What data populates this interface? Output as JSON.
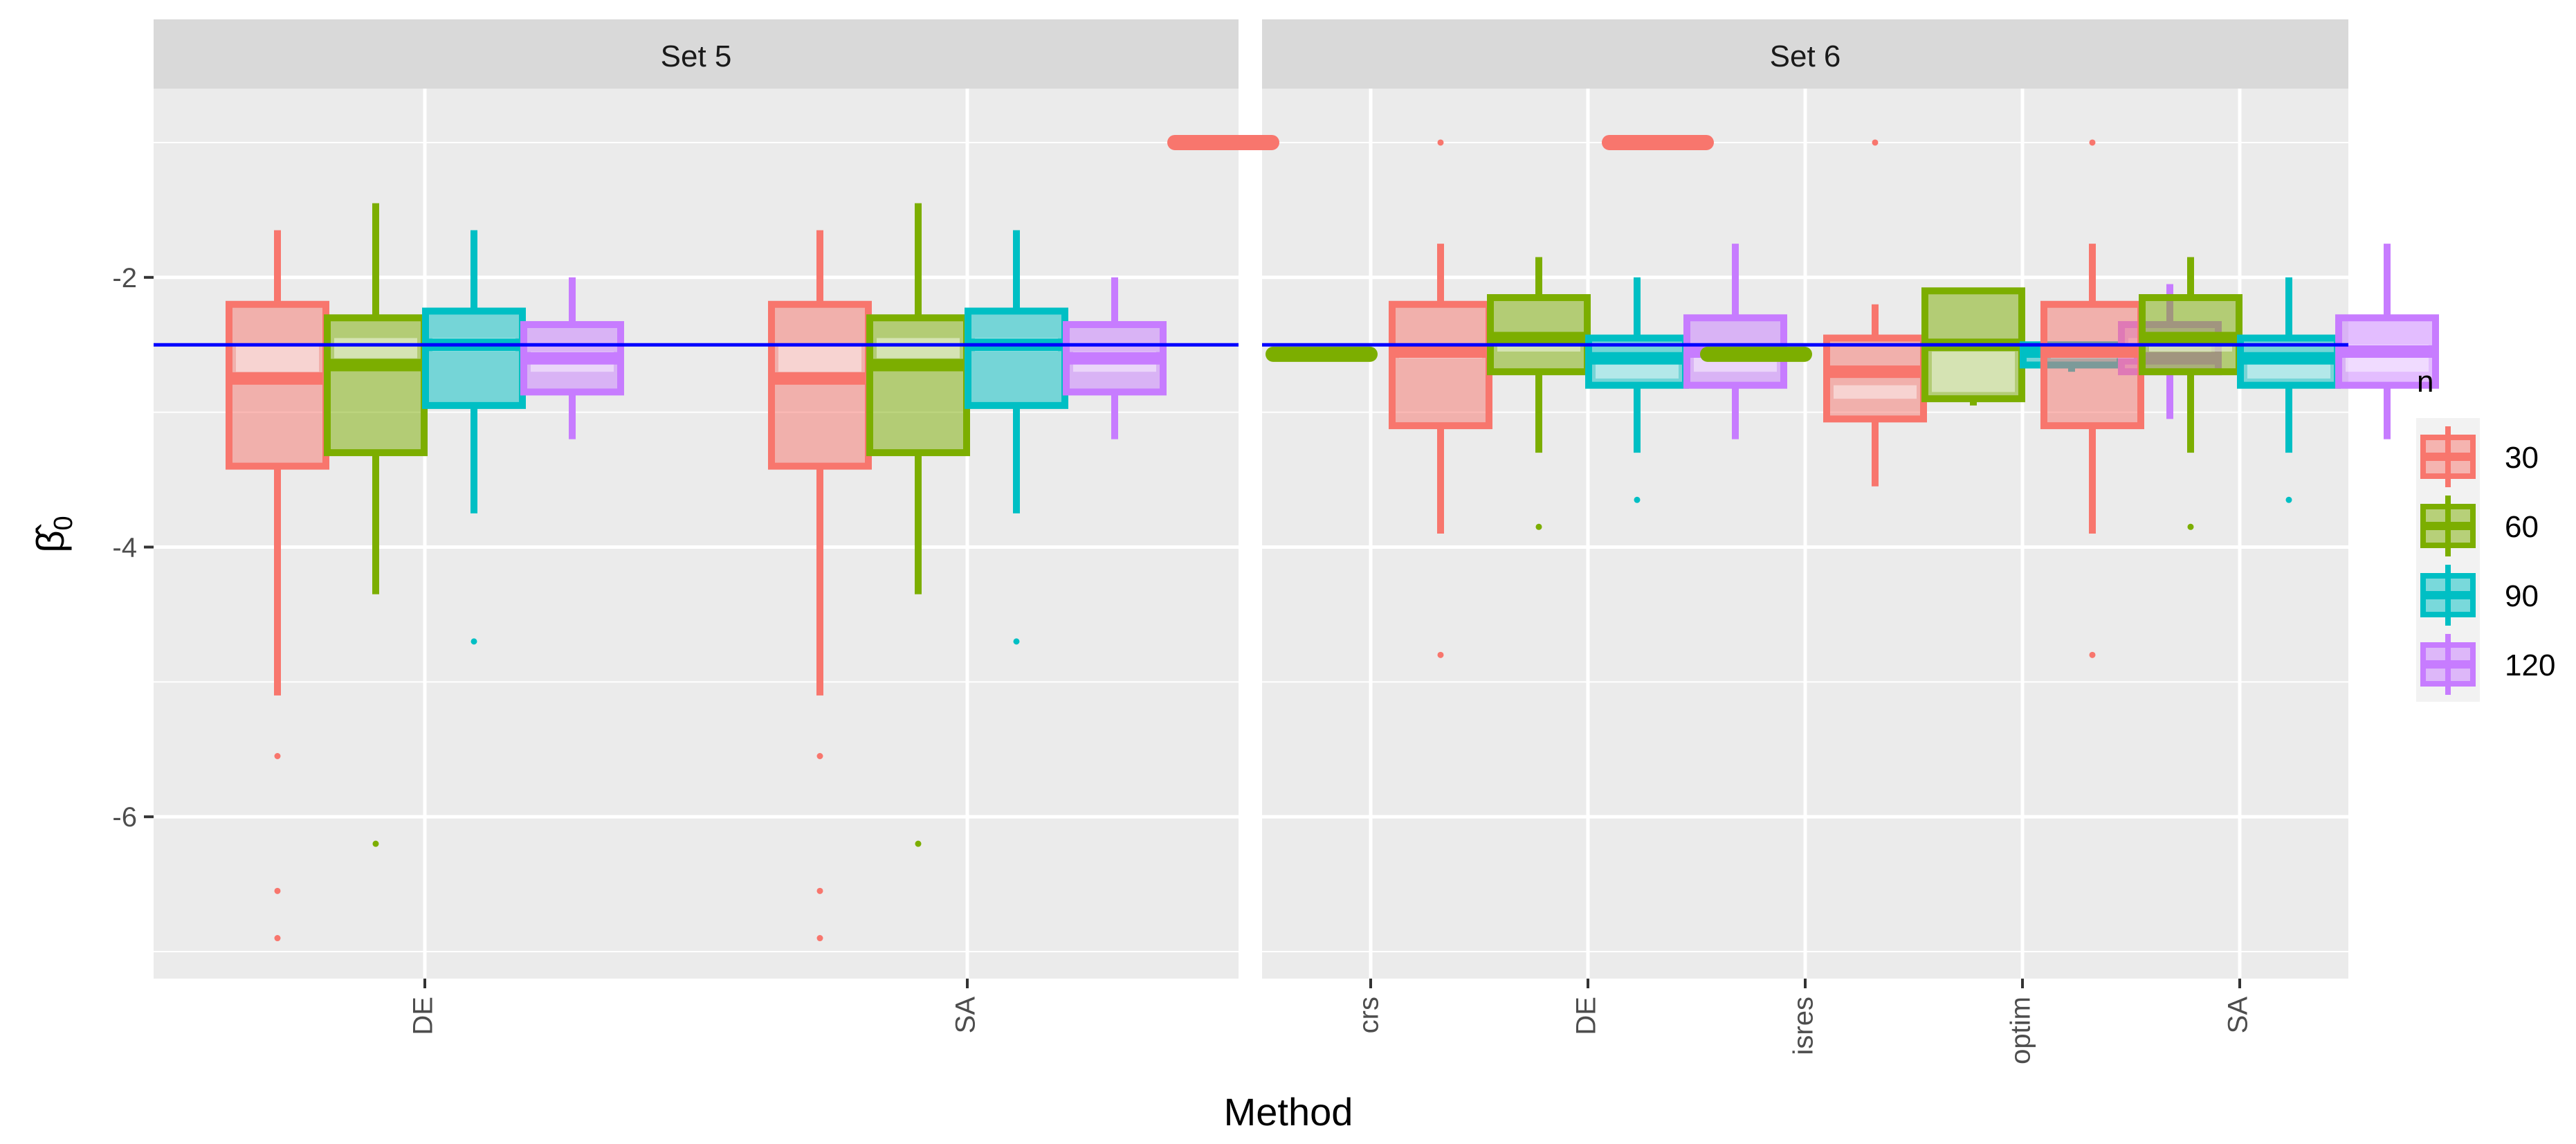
{
  "chart_data": {
    "type": "boxplot",
    "title": "",
    "xlabel": "Method",
    "ylabel": "β̂",
    "ylabel_subscript": "0",
    "ylim": [
      -7.2,
      -0.6
    ],
    "yticks": [
      -6,
      -4,
      -2
    ],
    "ytick_labels": [
      "-6",
      "-4",
      "-2"
    ],
    "reference_line": -2.5,
    "reference_color": "#0000ff",
    "legend": {
      "title": "n",
      "entries": [
        {
          "label": "30",
          "color": "#f8766d"
        },
        {
          "label": "60",
          "color": "#7cae00"
        },
        {
          "label": "90",
          "color": "#00bfc4"
        },
        {
          "label": "120",
          "color": "#c77cff"
        }
      ]
    },
    "series_names": [
      "30",
      "60",
      "90",
      "120"
    ],
    "panels": [
      {
        "label": "Set 5",
        "categories": [
          "DE",
          "SA"
        ],
        "groups": [
          {
            "method": "DE",
            "boxes": [
              {
                "n": "30",
                "q1": -3.4,
                "median": -2.75,
                "q3": -2.2,
                "mean_lo": -2.7,
                "mean_hi": -2.5,
                "wlo": -5.1,
                "whi": -1.65,
                "outliers": [
                  -5.55,
                  -6.55,
                  -6.9
                ]
              },
              {
                "n": "60",
                "q1": -3.3,
                "median": -2.65,
                "q3": -2.3,
                "mean_lo": -2.6,
                "mean_hi": -2.45,
                "wlo": -4.35,
                "whi": -1.45,
                "outliers": [
                  -6.2
                ]
              },
              {
                "n": "90",
                "q1": -2.95,
                "median": -2.5,
                "q3": -2.25,
                "mean_lo": -2.55,
                "mean_hi": -2.45,
                "wlo": -3.75,
                "whi": -1.65,
                "outliers": [
                  -4.7
                ]
              },
              {
                "n": "120",
                "q1": -2.85,
                "median": -2.6,
                "q3": -2.35,
                "mean_lo": -2.7,
                "mean_hi": -2.55,
                "wlo": -3.2,
                "whi": -2.0,
                "outliers": []
              }
            ]
          },
          {
            "method": "SA",
            "boxes": [
              {
                "n": "30",
                "q1": -3.4,
                "median": -2.75,
                "q3": -2.2,
                "mean_lo": -2.7,
                "mean_hi": -2.5,
                "wlo": -5.1,
                "whi": -1.65,
                "outliers": [
                  -5.55,
                  -6.55,
                  -6.9
                ]
              },
              {
                "n": "60",
                "q1": -3.3,
                "median": -2.65,
                "q3": -2.3,
                "mean_lo": -2.6,
                "mean_hi": -2.45,
                "wlo": -4.35,
                "whi": -1.45,
                "outliers": [
                  -6.2
                ]
              },
              {
                "n": "90",
                "q1": -2.95,
                "median": -2.5,
                "q3": -2.25,
                "mean_lo": -2.55,
                "mean_hi": -2.45,
                "wlo": -3.75,
                "whi": -1.65,
                "outliers": [
                  -4.7
                ]
              },
              {
                "n": "120",
                "q1": -2.85,
                "median": -2.6,
                "q3": -2.35,
                "mean_lo": -2.7,
                "mean_hi": -2.55,
                "wlo": -3.2,
                "whi": -2.0,
                "outliers": []
              }
            ]
          }
        ]
      },
      {
        "label": "Set 6",
        "categories": [
          "crs",
          "DE",
          "isres",
          "optim",
          "SA"
        ],
        "groups": [
          {
            "method": "crs",
            "boxes": [
              {
                "n": "30",
                "q1": -1.0,
                "median": -1.0,
                "q3": -1.0,
                "wlo": -1.0,
                "whi": -1.0,
                "outliers": []
              },
              {
                "n": "60",
                "q1": -2.57,
                "median": -2.57,
                "q3": -2.57,
                "wlo": -2.57,
                "whi": -2.57,
                "outliers": []
              }
            ]
          },
          {
            "method": "DE",
            "boxes": [
              {
                "n": "30",
                "q1": -3.1,
                "median": -2.55,
                "q3": -2.2,
                "mean_lo": -2.6,
                "mean_hi": -2.5,
                "wlo": -3.9,
                "whi": -1.75,
                "outliers": [
                  -1.0,
                  -4.8
                ]
              },
              {
                "n": "60",
                "q1": -2.7,
                "median": -2.45,
                "q3": -2.15,
                "mean_lo": -2.55,
                "mean_hi": -2.45,
                "wlo": -3.3,
                "whi": -1.85,
                "outliers": [
                  -3.85
                ]
              },
              {
                "n": "90",
                "q1": -2.8,
                "median": -2.6,
                "q3": -2.45,
                "mean_lo": -2.75,
                "mean_hi": -2.6,
                "wlo": -3.3,
                "whi": -2.0,
                "outliers": [
                  -3.65
                ]
              },
              {
                "n": "120",
                "q1": -2.8,
                "median": -2.55,
                "q3": -2.3,
                "mean_lo": -2.7,
                "mean_hi": -2.5,
                "wlo": -3.2,
                "whi": -1.75,
                "outliers": []
              }
            ]
          },
          {
            "method": "isres",
            "boxes": [
              {
                "n": "30",
                "q1": -1.0,
                "median": -1.0,
                "q3": -1.0,
                "wlo": -1.0,
                "whi": -1.0,
                "outliers": []
              },
              {
                "n": "60",
                "q1": -2.57,
                "median": -2.57,
                "q3": -2.57,
                "wlo": -2.57,
                "whi": -2.57,
                "outliers": []
              }
            ]
          },
          {
            "method": "optim",
            "boxes": [
              {
                "n": "30",
                "q1": -3.05,
                "median": -2.7,
                "q3": -2.45,
                "mean_lo": -2.9,
                "mean_hi": -2.8,
                "wlo": -3.55,
                "whi": -2.2,
                "outliers": [
                  -1.0
                ]
              },
              {
                "n": "60",
                "q1": -2.9,
                "median": -2.5,
                "q3": -2.1,
                "mean_lo": -2.85,
                "mean_hi": -2.55,
                "wlo": -2.95,
                "whi": -2.1,
                "outliers": []
              },
              {
                "n": "90",
                "q1": -2.65,
                "median": -2.55,
                "q3": -2.5,
                "wlo": -2.7,
                "whi": -2.5,
                "outliers": []
              },
              {
                "n": "120",
                "q1": -2.7,
                "median": -2.6,
                "q3": -2.35,
                "mean_lo": -2.6,
                "mean_hi": -2.45,
                "wlo": -3.05,
                "whi": -2.05,
                "outliers": []
              }
            ]
          },
          {
            "method": "SA",
            "boxes": [
              {
                "n": "30",
                "q1": -3.1,
                "median": -2.55,
                "q3": -2.2,
                "mean_lo": -2.6,
                "mean_hi": -2.5,
                "wlo": -3.9,
                "whi": -1.75,
                "outliers": [
                  -1.0,
                  -4.8
                ]
              },
              {
                "n": "60",
                "q1": -2.7,
                "median": -2.45,
                "q3": -2.15,
                "mean_lo": -2.55,
                "mean_hi": -2.45,
                "wlo": -3.3,
                "whi": -1.85,
                "outliers": [
                  -3.85
                ]
              },
              {
                "n": "90",
                "q1": -2.8,
                "median": -2.6,
                "q3": -2.45,
                "mean_lo": -2.75,
                "mean_hi": -2.6,
                "wlo": -3.3,
                "whi": -2.0,
                "outliers": [
                  -3.65
                ]
              },
              {
                "n": "120",
                "q1": -2.8,
                "median": -2.55,
                "q3": -2.3,
                "mean_lo": -2.7,
                "mean_hi": -2.5,
                "wlo": -3.2,
                "whi": -1.75,
                "outliers": []
              }
            ]
          }
        ]
      }
    ]
  }
}
